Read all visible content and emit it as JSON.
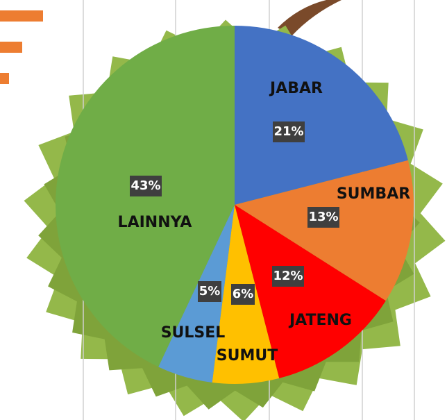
{
  "chart_data": {
    "type": "pie",
    "categories": [
      "JABAR",
      "SUMBAR",
      "JATENG",
      "SUMUT",
      "SULSEL",
      "LAINNYA"
    ],
    "values": [
      21,
      13,
      12,
      6,
      5,
      43
    ],
    "value_labels": [
      "21%",
      "13%",
      "12%",
      "6%",
      "5%",
      "43%"
    ],
    "colors": [
      "#4472c4",
      "#ed7d31",
      "#ff0000",
      "#ffc000",
      "#5b9bd5",
      "#70ad47"
    ]
  }
}
